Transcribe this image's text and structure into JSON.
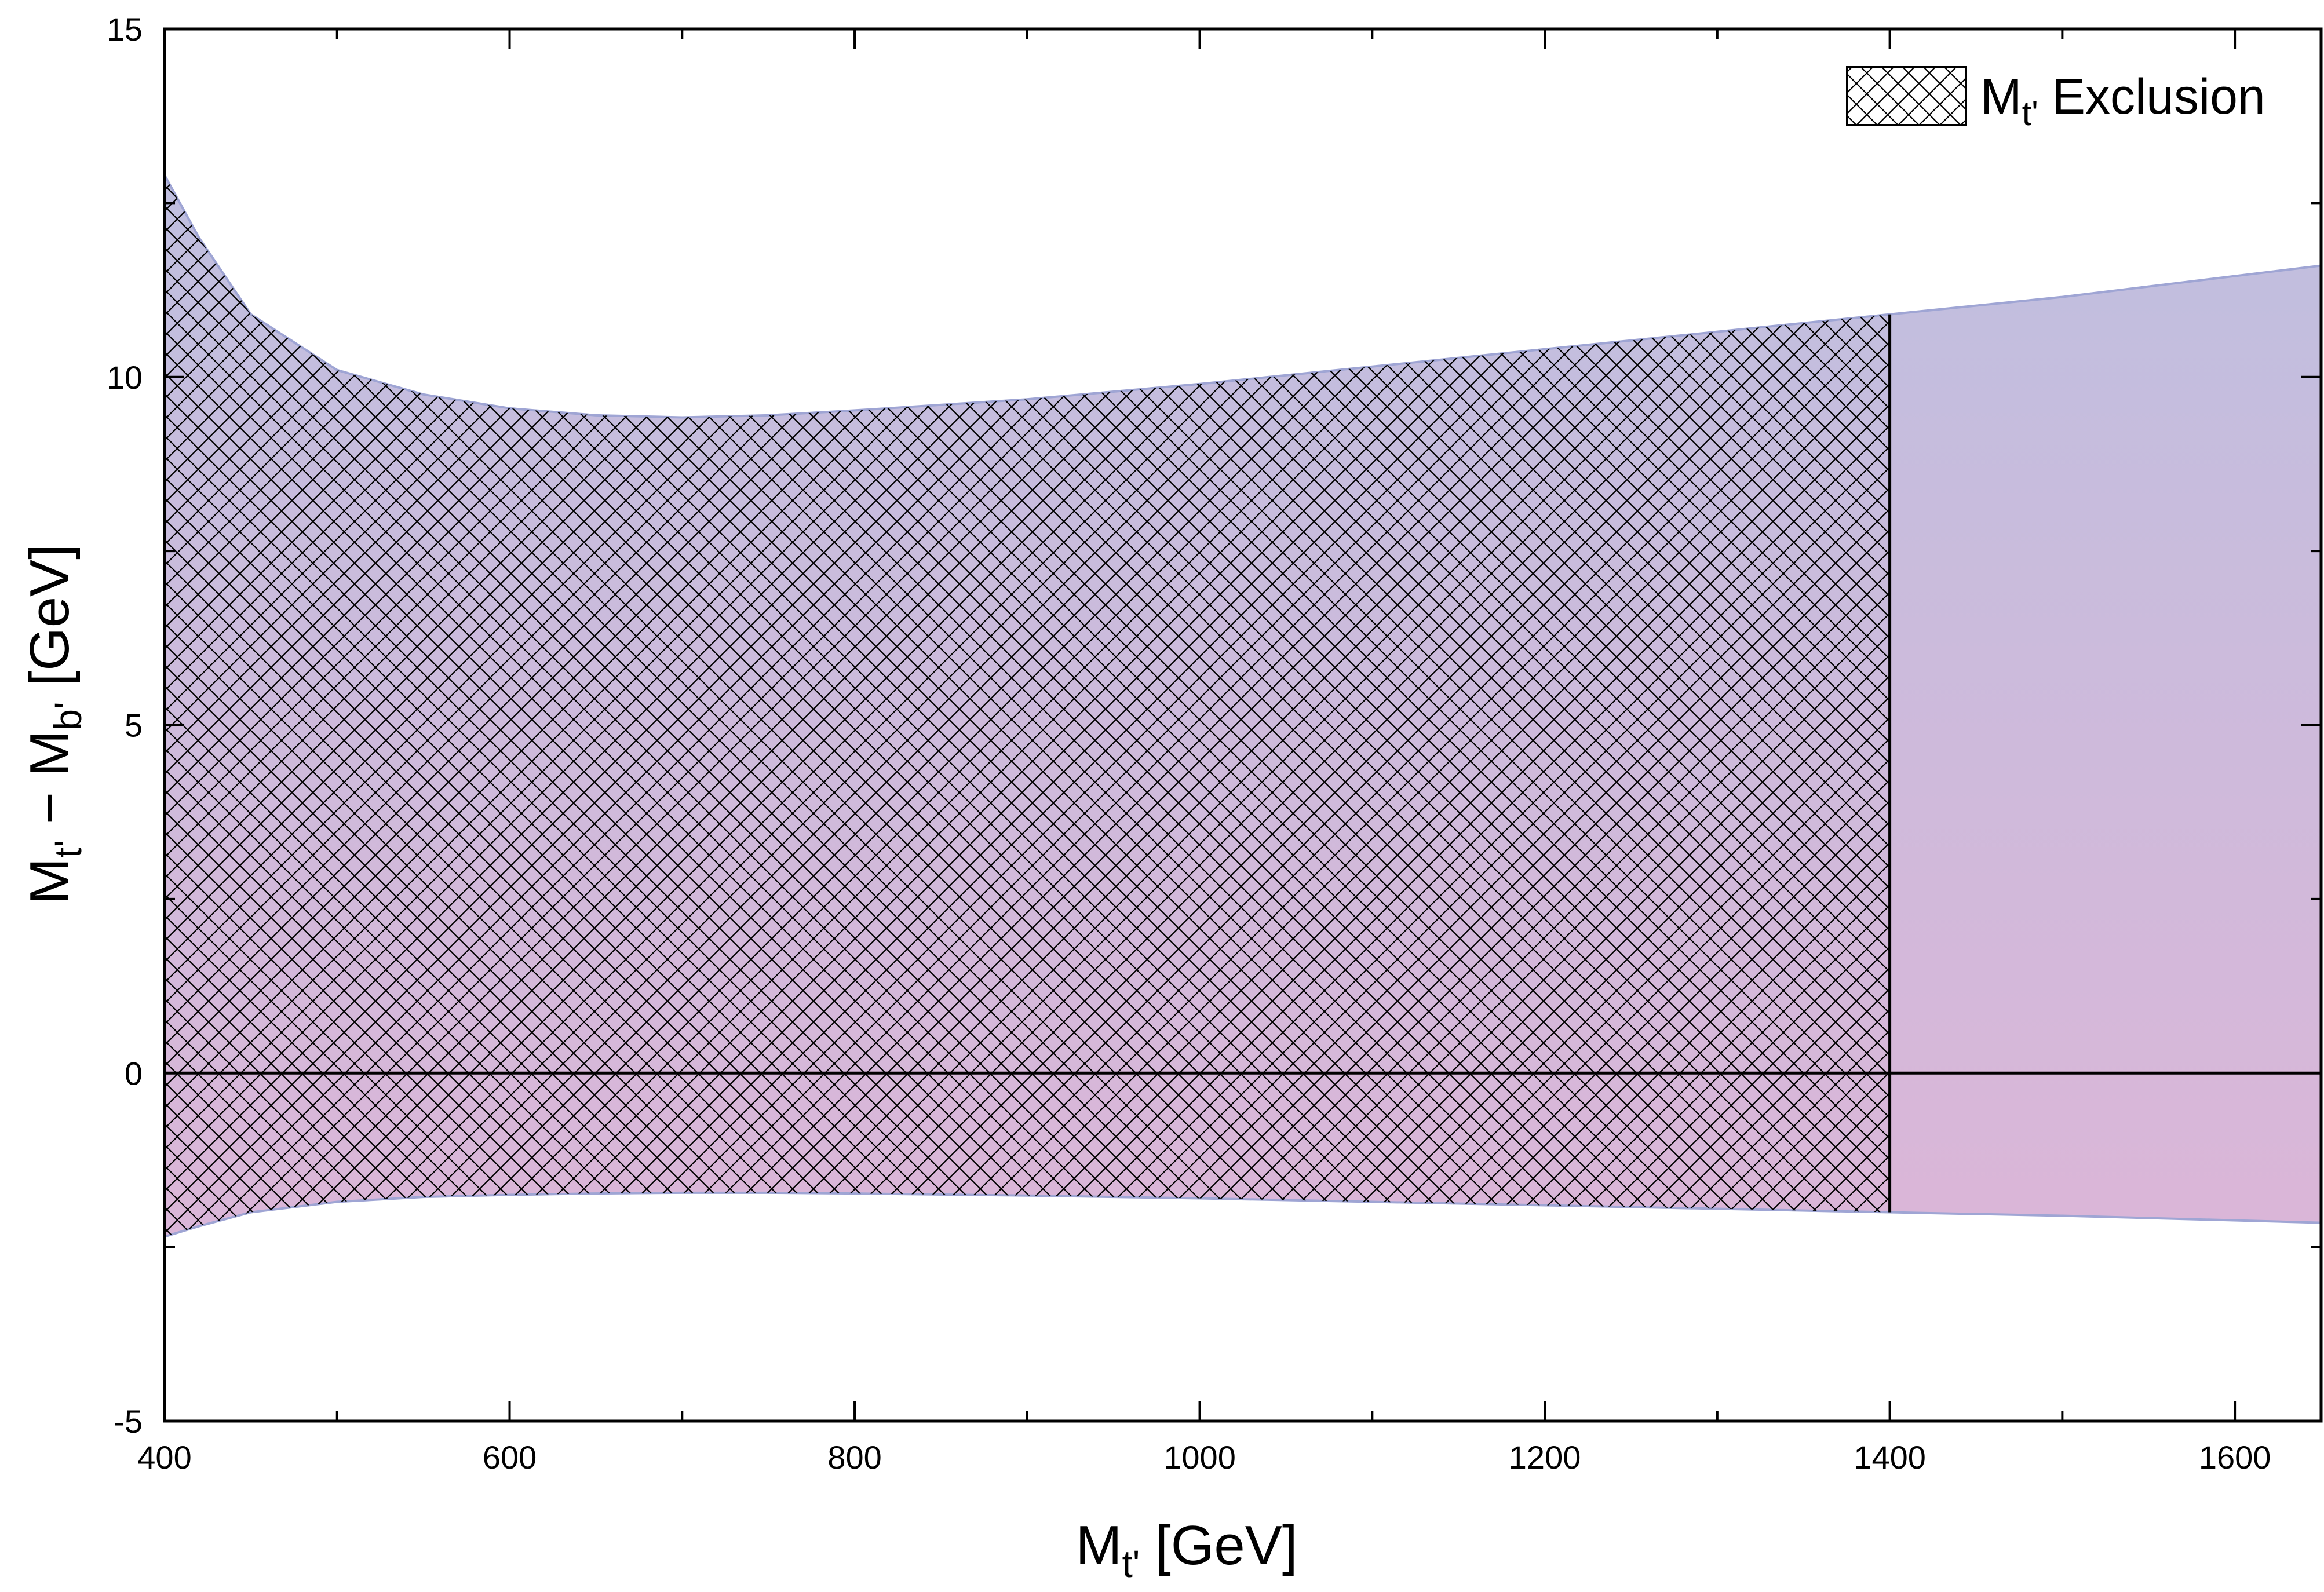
{
  "chart_data": {
    "type": "area",
    "title": "",
    "xlabel": {
      "main": "M",
      "sub": "t'",
      "rest": " [GeV]"
    },
    "ylabel": {
      "m1": "M",
      "s1": "t'",
      "mid": " − M",
      "s2": "b'",
      "rest": " [GeV]"
    },
    "xlim": [
      400,
      1650
    ],
    "ylim": [
      -5,
      15
    ],
    "x_ticks": [
      400,
      600,
      800,
      1000,
      1200,
      1400,
      1600
    ],
    "y_ticks": [
      -5,
      0,
      5,
      10,
      15
    ],
    "x_tick_labels": [
      "400",
      "600",
      "800",
      "1000",
      "1200",
      "1400",
      "1600"
    ],
    "y_tick_labels": [
      "-5",
      "0",
      "5",
      "10",
      "15"
    ],
    "grid": false,
    "band": {
      "x": [
        400,
        420,
        450,
        500,
        550,
        600,
        650,
        700,
        750,
        800,
        900,
        1000,
        1100,
        1200,
        1300,
        1400,
        1500,
        1650
      ],
      "upper": [
        12.9,
        12.0,
        10.9,
        10.1,
        9.75,
        9.55,
        9.45,
        9.42,
        9.45,
        9.52,
        9.68,
        9.9,
        10.15,
        10.4,
        10.65,
        10.9,
        11.15,
        11.6
      ],
      "lower": [
        -2.35,
        -2.2,
        -2.0,
        -1.85,
        -1.78,
        -1.75,
        -1.73,
        -1.72,
        -1.72,
        -1.73,
        -1.76,
        -1.8,
        -1.85,
        -1.9,
        -1.95,
        -2.0,
        -2.05,
        -2.15
      ],
      "color_top": "#bfbfdf",
      "color_bottom": "#dbb6d8"
    },
    "exclusion": {
      "x_range": [
        400,
        1400
      ],
      "legend_label": {
        "main": "M",
        "sub": "t'",
        "rest": " Exclusion"
      },
      "legend_position": "top-right"
    },
    "reference_line_y": 0
  }
}
